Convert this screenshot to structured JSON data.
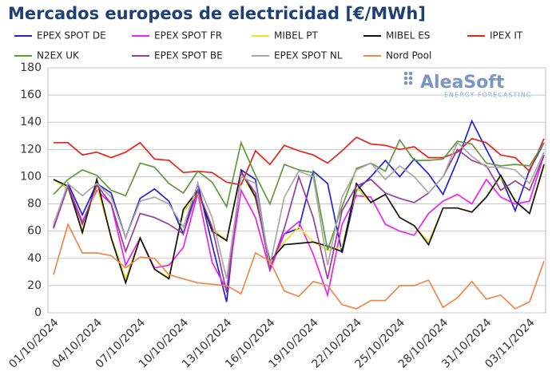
{
  "chart_data": {
    "type": "line",
    "title": "Mercados europeos de electricidad [€/MWh]",
    "logo": "AleaSoft",
    "logo_subtitle": "ENERGY FORECASTING",
    "categories": [
      "01/10/2024",
      null,
      null,
      "04/10/2024",
      null,
      null,
      "07/10/2024",
      null,
      null,
      "10/10/2024",
      null,
      null,
      "13/10/2024",
      null,
      null,
      "16/10/2024",
      null,
      null,
      "19/10/2024",
      null,
      null,
      "22/10/2024",
      null,
      null,
      "25/10/2024",
      null,
      null,
      "28/10/2024",
      null,
      null,
      "31/10/2024",
      null,
      null,
      "03/11/2024",
      null
    ],
    "ylim": [
      0,
      180
    ],
    "yticks": [
      0,
      20,
      40,
      60,
      80,
      100,
      120,
      140,
      160,
      180
    ],
    "grid": true,
    "series": [
      {
        "name": "EPEX SPOT DE",
        "color": "#1f1fe0",
        "values": [
          63,
          95,
          72,
          95,
          88,
          55,
          84,
          91,
          82,
          58,
          95,
          50,
          8,
          105,
          98,
          33,
          58,
          62,
          104,
          95,
          44,
          90,
          100,
          112,
          100,
          113,
          102,
          87,
          112,
          141,
          120,
          100,
          75,
          105,
          125
        ]
      },
      {
        "name": "EPEX SPOT FR",
        "color": "#ee22ee",
        "values": [
          62,
          93,
          67,
          90,
          80,
          35,
          55,
          33,
          35,
          48,
          88,
          37,
          17,
          90,
          70,
          31,
          58,
          67,
          43,
          13,
          65,
          86,
          85,
          65,
          60,
          57,
          73,
          82,
          87,
          80,
          98,
          85,
          80,
          82,
          116
        ]
      },
      {
        "name": "MIBEL PT",
        "color": "#f0e020",
        "values": [
          98,
          91,
          61,
          93,
          56,
          25,
          55,
          32,
          26,
          74,
          88,
          62,
          53,
          103,
          84,
          37,
          52,
          63,
          52,
          46,
          48,
          92,
          81,
          87,
          70,
          64,
          52,
          77,
          77,
          74,
          85,
          100,
          82,
          73,
          108
        ]
      },
      {
        "name": "MIBEL ES",
        "color": "#111111",
        "values": [
          98,
          93,
          59,
          98,
          55,
          22,
          55,
          32,
          25,
          76,
          90,
          60,
          53,
          104,
          85,
          38,
          50,
          51,
          52,
          49,
          45,
          95,
          81,
          87,
          70,
          64,
          50,
          77,
          77,
          74,
          85,
          101,
          82,
          73,
          109
        ]
      },
      {
        "name": "IPEX IT",
        "color": "#e8231c",
        "values": [
          125,
          125,
          116,
          118,
          114,
          118,
          125,
          113,
          112,
          103,
          104,
          103,
          96,
          94,
          119,
          109,
          123,
          119,
          116,
          110,
          119,
          129,
          124,
          123,
          120,
          122,
          114,
          114,
          118,
          128,
          125,
          116,
          114,
          104,
          128
        ]
      },
      {
        "name": "N2EX UK",
        "color": "#5f9a3a",
        "values": [
          87,
          98,
          105,
          101,
          90,
          86,
          110,
          107,
          95,
          88,
          104,
          96,
          78,
          125,
          101,
          80,
          109,
          105,
          103,
          46,
          78,
          106,
          110,
          104,
          127,
          112,
          112,
          113,
          126,
          124,
          110,
          108,
          109,
          108,
          125
        ]
      },
      {
        "name": "EPEX SPOT BE",
        "color": "#9b3b9b",
        "values": [
          63,
          93,
          65,
          94,
          80,
          45,
          73,
          70,
          65,
          58,
          90,
          63,
          15,
          103,
          88,
          32,
          62,
          100,
          70,
          25,
          75,
          93,
          98,
          88,
          84,
          81,
          88,
          100,
          120,
          112,
          108,
          90,
          97,
          90,
          116
        ]
      },
      {
        "name": "EPEX SPOT NL",
        "color": "#a8a8a8",
        "values": [
          65,
          95,
          86,
          95,
          85,
          55,
          82,
          85,
          80,
          63,
          95,
          70,
          25,
          100,
          95,
          35,
          85,
          104,
          100,
          35,
          85,
          105,
          110,
          98,
          108,
          100,
          88,
          100,
          125,
          115,
          107,
          107,
          105,
          95,
          118
        ]
      },
      {
        "name": "Nord Pool",
        "color": "#f0884a",
        "values": [
          28,
          65,
          44,
          44,
          42,
          33,
          41,
          40,
          28,
          25,
          22,
          21,
          20,
          14,
          44,
          38,
          16,
          12,
          23,
          20,
          6,
          3,
          9,
          9,
          20,
          20,
          24,
          4,
          11,
          23,
          10,
          13,
          3,
          8,
          38
        ]
      }
    ]
  }
}
